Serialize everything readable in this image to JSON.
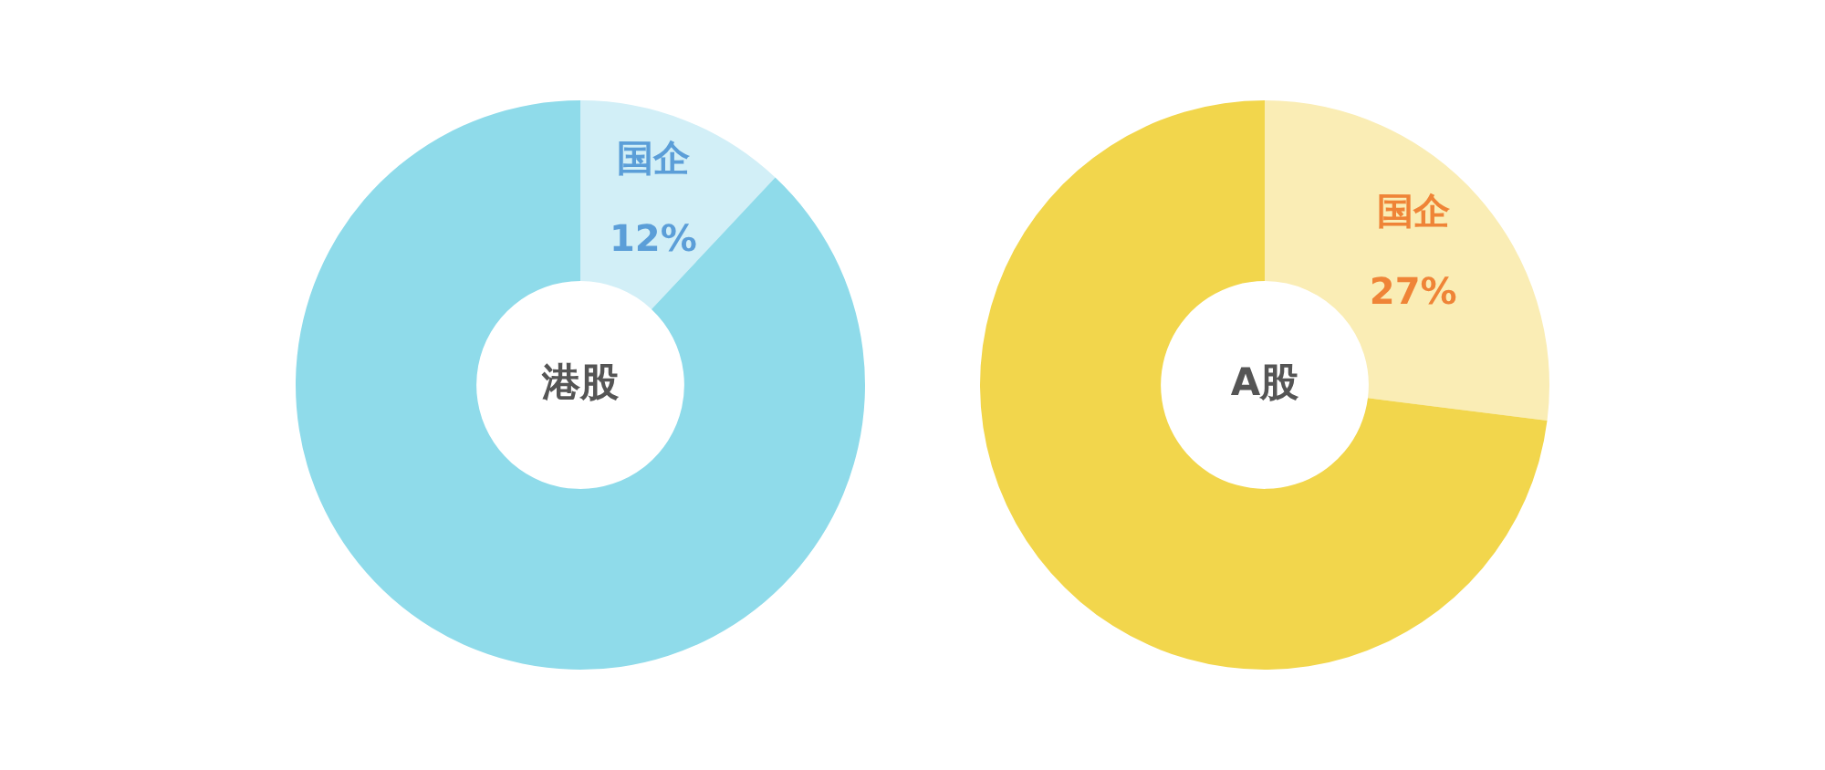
{
  "chart_data": [
    {
      "type": "donut",
      "title": "港股",
      "categories": [
        "国企",
        null
      ],
      "values": [
        12,
        88
      ],
      "colors": [
        "#d2eff7",
        "#8fdbea"
      ],
      "value_labels": [
        "12%",
        null
      ]
    },
    {
      "type": "donut",
      "title": "A股",
      "categories": [
        "国企",
        null
      ],
      "values": [
        27,
        73
      ],
      "colors": [
        "#faedb5",
        "#f2d64c"
      ],
      "value_labels": [
        "27%",
        null
      ]
    }
  ]
}
